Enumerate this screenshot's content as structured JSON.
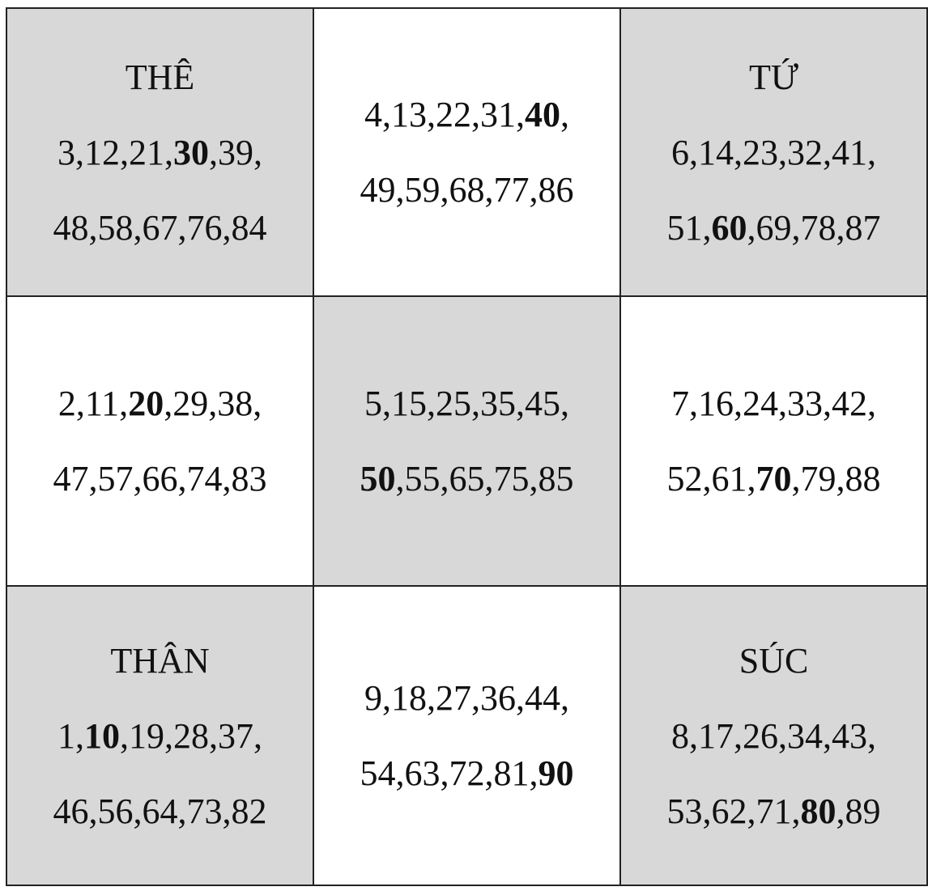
{
  "colors": {
    "shaded": "#d8d8d8",
    "plain": "#ffffff"
  },
  "grid": [
    [
      {
        "title": "THÊ",
        "shaded": true,
        "lines": [
          [
            {
              "t": "3,12,21,"
            },
            {
              "t": "30",
              "b": true
            },
            {
              "t": ",39,"
            }
          ],
          [
            {
              "t": "48,58,67,76,84"
            }
          ]
        ]
      },
      {
        "title": "",
        "shaded": false,
        "lines": [
          [
            {
              "t": "4,13,22,31,"
            },
            {
              "t": "40",
              "b": true
            },
            {
              "t": ","
            }
          ],
          [
            {
              "t": "49,59,68,77,86"
            }
          ]
        ]
      },
      {
        "title": "TỨ",
        "shaded": true,
        "lines": [
          [
            {
              "t": "6,14,23,32,41,"
            }
          ],
          [
            {
              "t": "51,"
            },
            {
              "t": "60",
              "b": true
            },
            {
              "t": ",69,78,87"
            }
          ]
        ]
      }
    ],
    [
      {
        "title": "",
        "shaded": false,
        "lines": [
          [
            {
              "t": "2,11,"
            },
            {
              "t": "20",
              "b": true
            },
            {
              "t": ",29,38,"
            }
          ],
          [
            {
              "t": "47,57,66,74,83"
            }
          ]
        ]
      },
      {
        "title": "",
        "shaded": true,
        "lines": [
          [
            {
              "t": "5,15,25,35,45,"
            }
          ],
          [
            {
              "t": "50",
              "b": true
            },
            {
              "t": ",55,65,75,85"
            }
          ]
        ]
      },
      {
        "title": "",
        "shaded": false,
        "lines": [
          [
            {
              "t": "7,16,24,33,42,"
            }
          ],
          [
            {
              "t": "52,61,"
            },
            {
              "t": "70",
              "b": true
            },
            {
              "t": ",79,88"
            }
          ]
        ]
      }
    ],
    [
      {
        "title": "THÂN",
        "shaded": true,
        "lines": [
          [
            {
              "t": "1,"
            },
            {
              "t": "10",
              "b": true
            },
            {
              "t": ",19,28,37,"
            }
          ],
          [
            {
              "t": "46,56,64,73,82"
            }
          ]
        ]
      },
      {
        "title": "",
        "shaded": false,
        "lines": [
          [
            {
              "t": "9,18,27,36,44,"
            }
          ],
          [
            {
              "t": "54,63,72,81,"
            },
            {
              "t": "90",
              "b": true
            }
          ]
        ]
      },
      {
        "title": "SÚC",
        "shaded": true,
        "lines": [
          [
            {
              "t": "8,17,26,34,43,"
            }
          ],
          [
            {
              "t": "53,62,71,"
            },
            {
              "t": "80",
              "b": true
            },
            {
              "t": ",89"
            }
          ]
        ]
      }
    ]
  ]
}
